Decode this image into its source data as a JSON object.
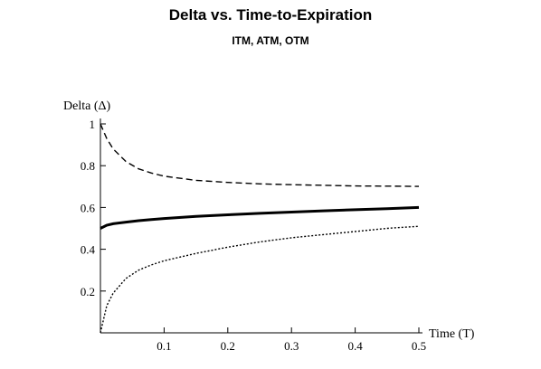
{
  "chart_data": {
    "type": "line",
    "title": "Delta vs. Time-to-Expiration",
    "subtitle": "ITM, ATM, OTM",
    "xlabel": "Time (T)",
    "ylabel": "Delta (Δ)",
    "xlim": [
      0,
      0.5
    ],
    "ylim": [
      0,
      1.0
    ],
    "xticks": [
      0.1,
      0.2,
      0.3,
      0.4,
      0.5
    ],
    "xtick_labels": [
      "0.1",
      "0.2",
      "0.3",
      "0.4",
      "0.5"
    ],
    "yticks": [
      0.2,
      0.4,
      0.6,
      0.8,
      1.0
    ],
    "ytick_labels": [
      "0.2",
      "0.4",
      "0.6",
      "0.8",
      "1"
    ],
    "grid": false,
    "series": [
      {
        "style": "dashed",
        "x": [
          0.0,
          0.01,
          0.02,
          0.04,
          0.06,
          0.08,
          0.1,
          0.15,
          0.2,
          0.25,
          0.3,
          0.35,
          0.4,
          0.45,
          0.5
        ],
        "values": [
          1.0,
          0.93,
          0.88,
          0.82,
          0.785,
          0.765,
          0.75,
          0.73,
          0.72,
          0.713,
          0.709,
          0.706,
          0.703,
          0.702,
          0.701
        ]
      },
      {
        "style": "solid",
        "x": [
          0.0,
          0.01,
          0.02,
          0.04,
          0.06,
          0.08,
          0.1,
          0.15,
          0.2,
          0.25,
          0.3,
          0.35,
          0.4,
          0.45,
          0.5
        ],
        "values": [
          0.5,
          0.515,
          0.522,
          0.53,
          0.537,
          0.542,
          0.547,
          0.557,
          0.565,
          0.572,
          0.578,
          0.584,
          0.589,
          0.594,
          0.6
        ]
      },
      {
        "style": "dotted",
        "x": [
          0.0,
          0.01,
          0.02,
          0.04,
          0.06,
          0.08,
          0.1,
          0.15,
          0.2,
          0.25,
          0.3,
          0.35,
          0.4,
          0.45,
          0.5
        ],
        "values": [
          0.0,
          0.13,
          0.19,
          0.26,
          0.3,
          0.325,
          0.345,
          0.38,
          0.41,
          0.435,
          0.455,
          0.47,
          0.485,
          0.5,
          0.51
        ]
      }
    ]
  }
}
